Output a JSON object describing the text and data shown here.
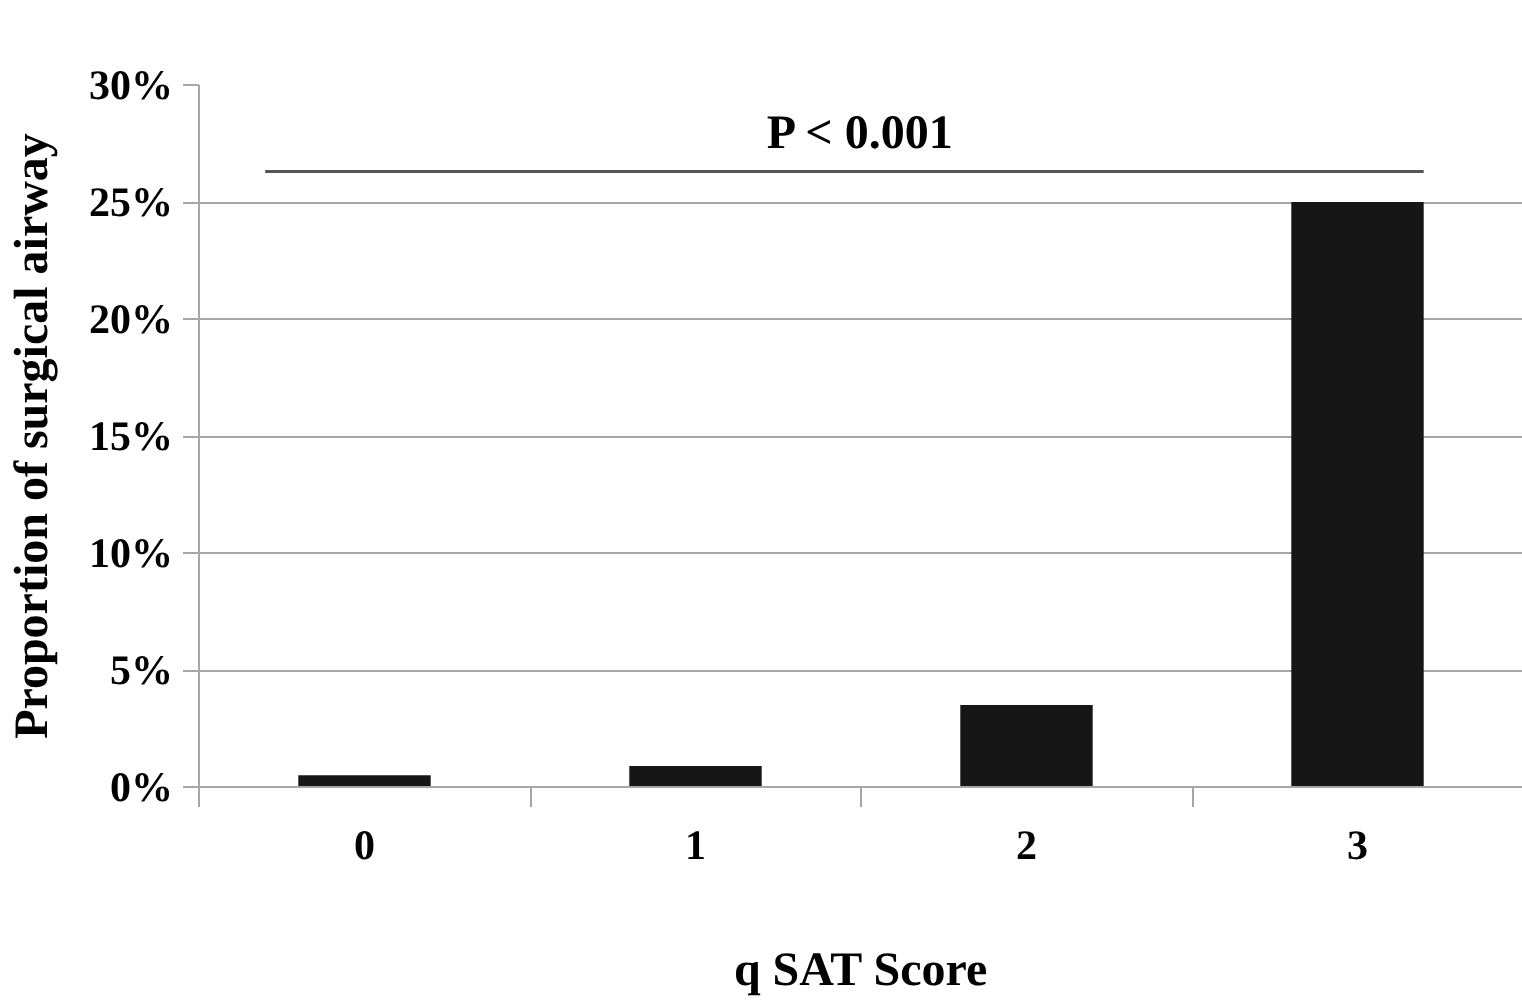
{
  "chart_data": {
    "type": "bar",
    "xlabel": "q SAT Score",
    "ylabel": "Proportion of surgical airway",
    "categories": [
      "0",
      "1",
      "2",
      "3"
    ],
    "values": [
      0.5,
      0.9,
      3.5,
      25
    ],
    "color": "#161616",
    "ylim": [
      0,
      30
    ],
    "yticks": [
      {
        "value": 0,
        "label": "0%"
      },
      {
        "value": 5,
        "label": "5%"
      },
      {
        "value": 10,
        "label": "10%"
      },
      {
        "value": 15,
        "label": "15%"
      },
      {
        "value": 20,
        "label": "20%"
      },
      {
        "value": 25,
        "label": "25%"
      },
      {
        "value": 30,
        "label": "30%"
      }
    ],
    "grid": "y",
    "ref_lines": [
      {
        "axis": "y",
        "value": 26.3,
        "label": "P < 0.001",
        "color": "#555555"
      }
    ]
  }
}
